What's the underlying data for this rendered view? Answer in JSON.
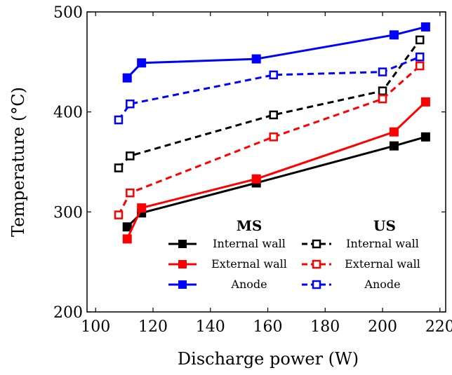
{
  "chart_data": {
    "type": "line",
    "xlabel": "Discharge power (W)",
    "ylabel": "Temperature (°C)",
    "xlim": [
      97,
      222
    ],
    "ylim": [
      200,
      500
    ],
    "xticks": [
      100,
      120,
      140,
      160,
      180,
      200,
      220
    ],
    "yticks": [
      200,
      300,
      400,
      500
    ],
    "grid": false,
    "legend_position": "bottom-right",
    "legend_groups": [
      "MS",
      "US"
    ],
    "series": [
      {
        "name": "Internal wall",
        "group": "MS",
        "color": "#000000",
        "style": "solid",
        "marker": "filled-square",
        "x": [
          111,
          116,
          156,
          204,
          215
        ],
        "y": [
          285,
          299,
          329,
          366,
          375
        ]
      },
      {
        "name": "External wall",
        "group": "MS",
        "color": "#ff0000",
        "style": "solid",
        "marker": "filled-square",
        "x": [
          111,
          116,
          156,
          204,
          215
        ],
        "y": [
          273,
          304,
          333,
          380,
          410
        ]
      },
      {
        "name": "Anode",
        "group": "MS",
        "color": "#0000ff",
        "style": "solid",
        "marker": "filled-square",
        "x": [
          111,
          116,
          156,
          204,
          215
        ],
        "y": [
          434,
          449,
          453,
          477,
          485
        ]
      },
      {
        "name": "Internal wall",
        "group": "US",
        "color": "#000000",
        "style": "dashed",
        "marker": "open-square",
        "x": [
          108,
          112,
          162,
          200,
          213
        ],
        "y": [
          344,
          356,
          397,
          421,
          472
        ]
      },
      {
        "name": "External wall",
        "group": "US",
        "color": "#ff0000",
        "style": "dashed",
        "marker": "open-square",
        "x": [
          108,
          112,
          162,
          200,
          213
        ],
        "y": [
          297,
          319,
          375,
          413,
          446
        ]
      },
      {
        "name": "Anode",
        "group": "US",
        "color": "#0000ff",
        "style": "dashed",
        "marker": "open-square",
        "x": [
          108,
          112,
          162,
          200,
          213
        ],
        "y": [
          392,
          408,
          437,
          440,
          455
        ]
      }
    ]
  }
}
